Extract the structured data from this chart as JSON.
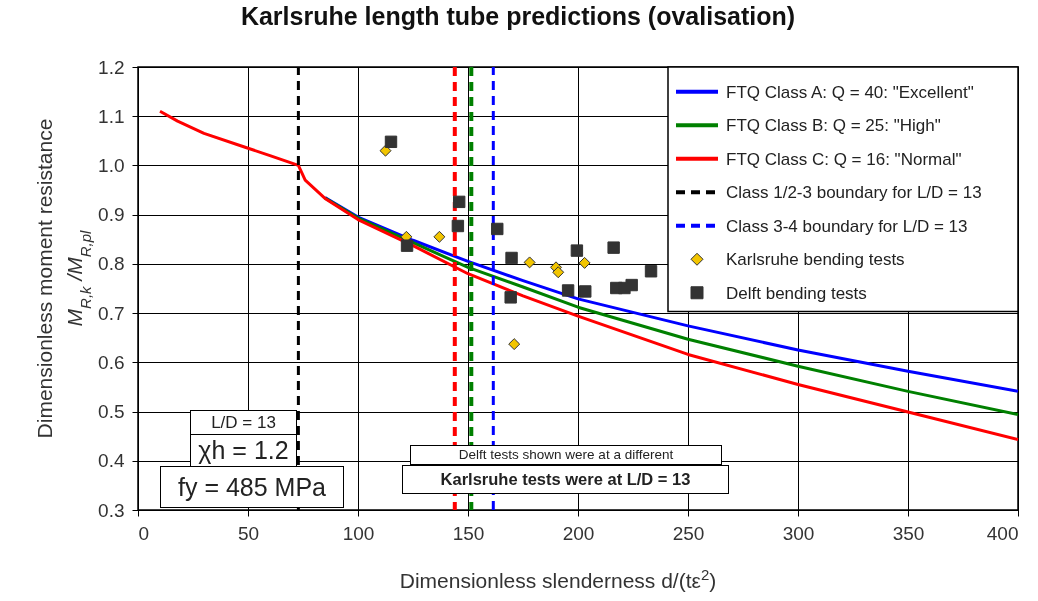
{
  "chart_data": {
    "type": "line",
    "title": "Karlsruhe length tube predictions (ovalisation)",
    "xlabel": "Dimensionless slenderness  d/(tε$^{2}$)",
    "ylabel": "Dimensionless moment resistance\nM$_{R,k}$ /M$_{R,pl}$",
    "xlim": [
      0,
      400
    ],
    "xticks": [
      0,
      50,
      100,
      150,
      200,
      250,
      300,
      350,
      400
    ],
    "ylim": [
      0.3,
      1.2
    ],
    "yticks": [
      0.3,
      0.4,
      0.5,
      0.6,
      0.7,
      0.8,
      0.9,
      {
        "value": 1,
        "label": "1.0"
      },
      1.1,
      1.2
    ],
    "grid": true,
    "legend": "top right",
    "series": [
      {
        "name": "FTQ Class A: Q = 40: \"Excellent\"",
        "type": "line",
        "color": "#0000ff",
        "x": [
          85,
          100,
          125,
          150,
          175,
          200,
          250,
          300,
          350,
          400
        ],
        "values": [
          0.935,
          0.895,
          0.848,
          0.805,
          0.766,
          0.729,
          0.674,
          0.625,
          0.582,
          0.541
        ]
      },
      {
        "name": "FTQ Class B: Q = 25: \"High\"",
        "type": "line",
        "color": "#008000",
        "x": [
          85,
          100,
          125,
          150,
          175,
          200,
          250,
          300,
          350,
          400
        ],
        "values": [
          0.934,
          0.893,
          0.843,
          0.793,
          0.753,
          0.712,
          0.647,
          0.592,
          0.541,
          0.494
        ]
      },
      {
        "name": "FTQ Class C: Q = 16: \"Normal\"",
        "type": "line",
        "color": "#ff0000",
        "x": [
          10,
          18,
          30,
          48.7,
          60,
          72.9,
          76,
          85,
          100,
          125,
          150,
          175,
          200,
          250,
          300,
          350,
          400
        ],
        "values": [
          1.11,
          1.09,
          1.065,
          1.037,
          1.02,
          1.0,
          0.97,
          0.933,
          0.89,
          0.837,
          0.78,
          0.735,
          0.694,
          0.616,
          0.555,
          0.499,
          0.443
        ]
      },
      {
        "name": "Class 1/2-3 boundary for L/D = 13",
        "type": "line",
        "color": "#000000",
        "line_style": "dashed",
        "x": [
          72.9,
          72.9
        ],
        "values": [
          0.3,
          1.2
        ]
      },
      {
        "name": "Class 3-4 boundary for L/D = 13",
        "type": "line",
        "color": "#0000ff",
        "line_style": "dashed",
        "x": [
          161.5,
          161.5
        ],
        "values": [
          0.3,
          1.2
        ]
      },
      {
        "name": "Karlsruhe bending tests",
        "type": "scatter",
        "marker": "diamond",
        "color": "#f2c500",
        "x": [
          112.5,
          122,
          137,
          171,
          178,
          190,
          191,
          203
        ],
        "values": [
          1.03,
          0.855,
          0.855,
          0.637,
          0.803,
          0.793,
          0.783,
          0.802
        ]
      },
      {
        "name": "Delft bending tests",
        "type": "scatter",
        "marker": "square",
        "color": "#333333",
        "x": [
          115,
          122.3,
          146,
          145.4,
          163.3,
          169.8,
          169.4,
          199.5,
          216.2,
          195.5,
          203.3,
          217.4,
          221.1,
          224.4,
          233.2
        ],
        "values": [
          1.048,
          0.837,
          0.926,
          0.877,
          0.871,
          0.812,
          0.732,
          0.827,
          0.833,
          0.746,
          0.744,
          0.751,
          0.751,
          0.757,
          0.785
        ]
      }
    ],
    "ref_lines": [
      {
        "axis": "x",
        "value": 144,
        "color": "#ff0000",
        "line_style": "dashed"
      },
      {
        "axis": "x",
        "value": 151.5,
        "color": "#008000",
        "line_style": "dashed"
      }
    ],
    "annotations": [
      "L/D = 13",
      "χh = 1.2",
      "fy = 485 MPa",
      "Delft tests shown were at a different",
      "Karlsruhe tests were at L/D = 13"
    ]
  }
}
